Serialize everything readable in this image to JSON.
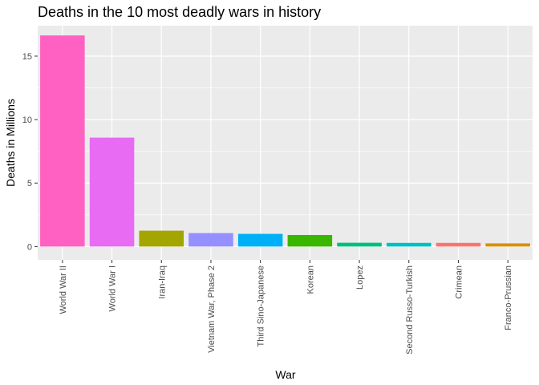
{
  "chart_data": {
    "type": "bar",
    "title": "Deaths in the 10 most deadly wars in history",
    "xlabel": "War",
    "ylabel": "Deaths in Millions",
    "ylim": [
      -1.05,
      17.4
    ],
    "yticks": [
      0,
      5,
      10,
      15
    ],
    "categories": [
      "World War II",
      "World War I",
      "Iran-Iraq",
      "Vietnam War, Phase 2",
      "Third Sino-Japanese",
      "Korean",
      "Lopez",
      "Second Russo-Turkish",
      "Crimean",
      "Franco-Prussian"
    ],
    "values": [
      16.63,
      8.58,
      1.25,
      1.06,
      1.0,
      0.91,
      0.3,
      0.29,
      0.29,
      0.25
    ],
    "colors": [
      "#FF61C3",
      "#E76BF3",
      "#A3A500",
      "#9590FF",
      "#00B0F6",
      "#39B600",
      "#00BF7D",
      "#00BFC4",
      "#F8766D",
      "#D89000"
    ],
    "grid": true,
    "legend": "none",
    "panel_background": "#EBEBEB"
  }
}
